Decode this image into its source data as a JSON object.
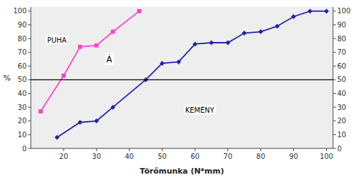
{
  "chart_data": {
    "type": "line",
    "x_label": "Törőmunka (N*mm)",
    "y_label": "%",
    "series": [
      {
        "x": [
          18,
          25,
          30,
          35,
          45,
          50,
          55,
          60,
          65,
          70,
          75,
          80,
          85,
          90,
          95,
          100
        ],
        "values": [
          8,
          19,
          20,
          30,
          50,
          62,
          63,
          76,
          77,
          77,
          84,
          85,
          89,
          96,
          100,
          100
        ],
        "color": "#2222AA",
        "marker": "diamond"
      },
      {
        "x": [
          13,
          20,
          25,
          30,
          35,
          43
        ],
        "values": [
          27,
          53,
          74,
          75,
          85,
          100
        ],
        "color": "#FF44CC",
        "marker": "square"
      }
    ],
    "hline": 50,
    "annotations": [
      {
        "text": "PUHA",
        "x": 15,
        "y": 79
      },
      {
        "text": "Á",
        "x": 33,
        "y": 65
      },
      {
        "text": "KEMÉNY",
        "x": 57,
        "y": 28
      }
    ],
    "xlim": [
      10,
      102
    ],
    "ylim": [
      0,
      103
    ],
    "xticks": [
      20,
      30,
      40,
      50,
      60,
      70,
      80,
      90,
      100
    ],
    "yticks": [
      0,
      10,
      20,
      30,
      40,
      50,
      60,
      70,
      80,
      90,
      100
    ],
    "y2lim": [
      0,
      103
    ],
    "y2ticks": [
      0,
      10,
      20,
      30,
      40,
      50,
      60,
      70,
      80,
      90,
      100
    ],
    "grid": false
  }
}
